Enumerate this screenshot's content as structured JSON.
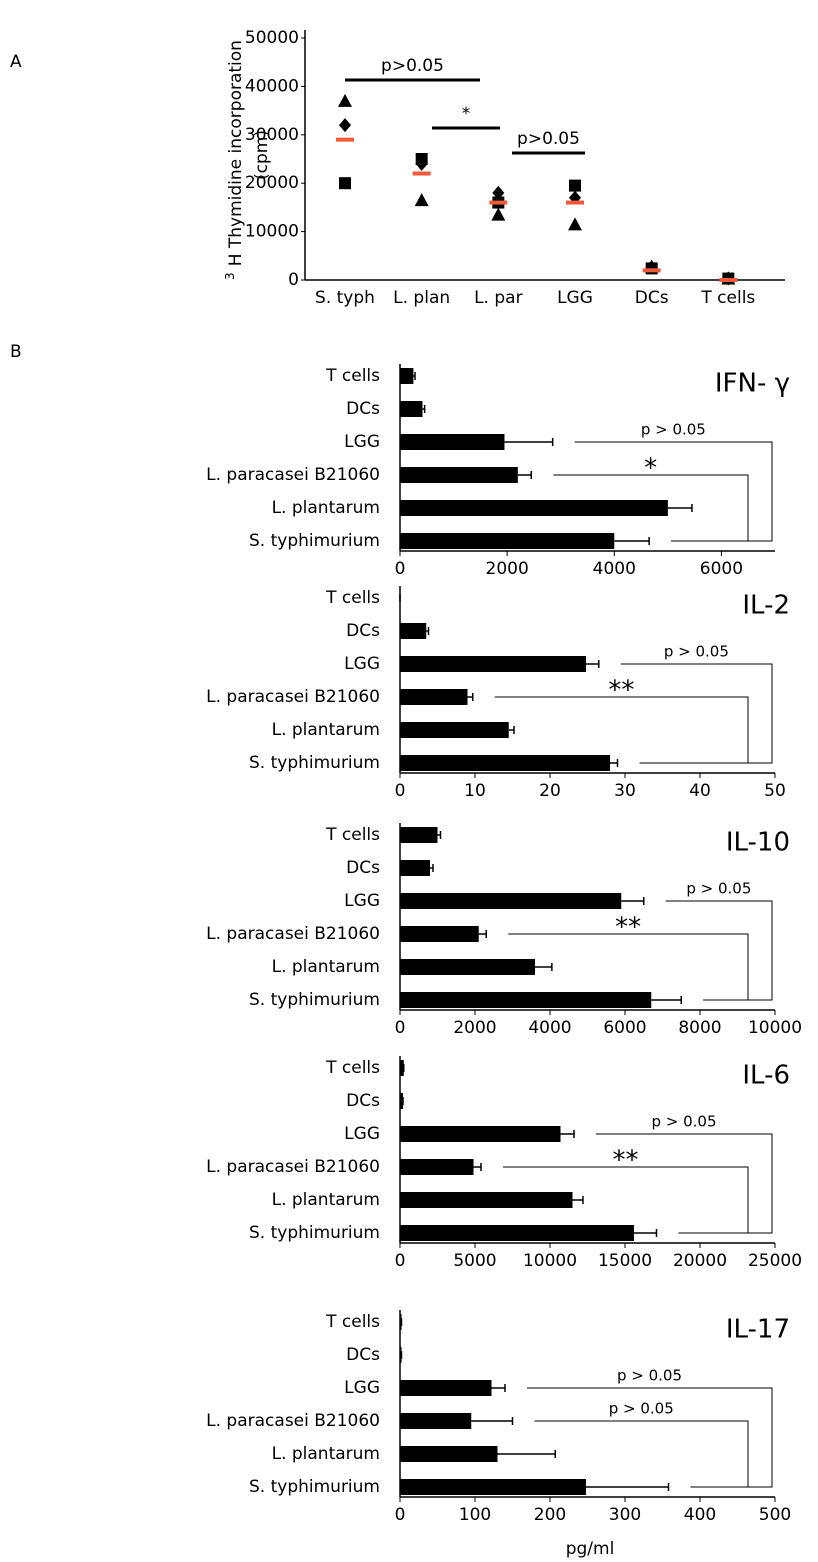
{
  "chart_data": [
    {
      "type": "scatter",
      "panel_label": "A",
      "y_label_sup": "3",
      "y_label": "H Thymidine incorporation",
      "y_label_2": "(cpm)",
      "categories": [
        "S. typh",
        "L. plan",
        "L. par",
        "LGG",
        "DCs",
        "T cells"
      ],
      "series": [
        {
          "marker": "triangle",
          "color": "#000000",
          "values": [
            37000,
            16500,
            13500,
            11500,
            2800,
            300
          ]
        },
        {
          "marker": "diamond",
          "color": "#000000",
          "values": [
            32000,
            24000,
            18000,
            17000,
            2600,
            300
          ]
        },
        {
          "marker": "square",
          "color": "#000000",
          "values": [
            20000,
            25000,
            16000,
            19500,
            2400,
            300
          ]
        },
        {
          "marker": "bar",
          "color": "#f05a3a",
          "values": [
            29000,
            22000,
            16000,
            16000,
            2000,
            0
          ]
        }
      ],
      "ylim": [
        0,
        50000
      ],
      "yticks": [
        0,
        10000,
        20000,
        30000,
        40000,
        50000
      ],
      "annotations": [
        "p>0.05",
        "*",
        "p>0.05"
      ]
    },
    {
      "type": "hbar",
      "panel_label": "B",
      "title": "IFN- γ",
      "categories": [
        "T cells",
        "DCs",
        "LGG",
        "L. paracasei B21060",
        "L. plantarum",
        "S. typhimurium"
      ],
      "values": [
        250,
        420,
        1950,
        2200,
        5000,
        4000
      ],
      "errors": [
        30,
        40,
        900,
        250,
        450,
        650
      ],
      "color": "#000000",
      "xlim": [
        0,
        7000
      ],
      "xticks": [
        0,
        2000,
        4000,
        6000
      ],
      "annotations": [
        "p > 0.05",
        "*"
      ]
    },
    {
      "type": "hbar",
      "title": "IL-2",
      "categories": [
        "T cells",
        "DCs",
        "LGG",
        "L. paracasei B21060",
        "L. plantarum",
        "S. typhimurium"
      ],
      "values": [
        0,
        3.5,
        24.8,
        9,
        14.5,
        28
      ],
      "errors": [
        0,
        0.3,
        1.7,
        0.7,
        0.7,
        1
      ],
      "color": "#000000",
      "xlim": [
        0,
        50
      ],
      "xticks": [
        0,
        10,
        20,
        30,
        40,
        50
      ],
      "annotations": [
        "p > 0.05",
        "**"
      ]
    },
    {
      "type": "hbar",
      "title": "IL-10",
      "categories": [
        "T cells",
        "DCs",
        "LGG",
        "L. paracasei B21060",
        "L. plantarum",
        "S. typhimurium"
      ],
      "values": [
        1000,
        800,
        5900,
        2100,
        3600,
        6700
      ],
      "errors": [
        80,
        80,
        600,
        200,
        450,
        800
      ],
      "color": "#000000",
      "xlim": [
        0,
        10000
      ],
      "xticks": [
        0,
        2000,
        4000,
        6000,
        8000,
        10000
      ],
      "annotations": [
        "p > 0.05",
        "**"
      ]
    },
    {
      "type": "hbar",
      "title": "IL-6",
      "categories": [
        "T cells",
        "DCs",
        "LGG",
        "L. paracasei B21060",
        "L. plantarum",
        "S. typhimurium"
      ],
      "values": [
        250,
        200,
        10700,
        4900,
        11500,
        15600
      ],
      "errors": [
        0,
        0,
        900,
        500,
        700,
        1500
      ],
      "color": "#000000",
      "xlim": [
        0,
        25000
      ],
      "xticks": [
        0,
        5000,
        10000,
        15000,
        20000,
        25000
      ],
      "annotations": [
        "p > 0.05",
        "**"
      ]
    },
    {
      "type": "hbar",
      "title": "IL-17",
      "x_label": "pg/ml",
      "categories": [
        "T cells",
        "DCs",
        "LGG",
        "L. paracasei B21060",
        "L. plantarum",
        "S. typhimurium"
      ],
      "values": [
        2,
        2,
        122,
        95,
        130,
        248
      ],
      "errors": [
        0,
        0,
        18,
        55,
        77,
        110
      ],
      "color": "#000000",
      "xlim": [
        0,
        500
      ],
      "xticks": [
        0,
        100,
        200,
        300,
        400,
        500
      ],
      "annotations": [
        "p > 0.05",
        "p > 0.05"
      ]
    }
  ]
}
